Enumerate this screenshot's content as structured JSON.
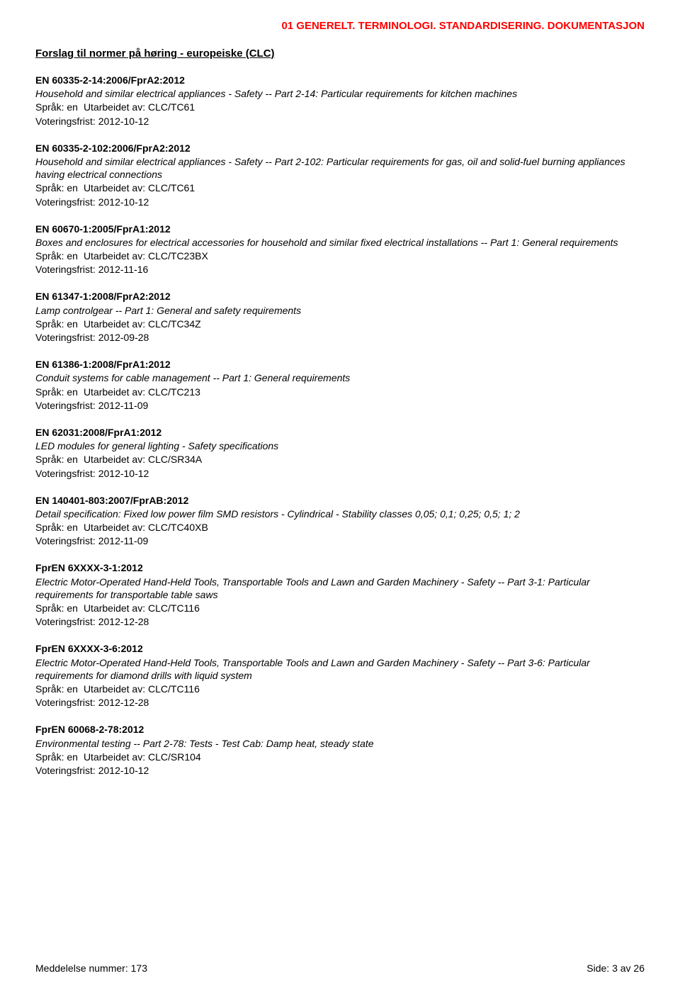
{
  "page_header": "01  GENERELT. TERMINOLOGI. STANDARDISERING. DOKUMENTASJON",
  "section_title": "Forslag til normer på høring - europeiske (CLC)",
  "labels": {
    "sprak": "Språk:",
    "utarbeidet": "Utarbeidet av:",
    "voteringsfrist": "Voteringsfrist:"
  },
  "entries": [
    {
      "code": "EN 60335-2-14:2006/FprA2:2012",
      "desc": "Household and similar electrical appliances - Safety -- Part 2-14: Particular requirements for kitchen machines",
      "sprak": "en",
      "utarbeidet": "CLC/TC61",
      "voteringsfrist": "2012-10-12"
    },
    {
      "code": "EN 60335-2-102:2006/FprA2:2012",
      "desc": "Household and similar electrical appliances - Safety -- Part 2-102: Particular requirements for gas, oil and solid-fuel burning appliances having electrical connections",
      "sprak": "en",
      "utarbeidet": "CLC/TC61",
      "voteringsfrist": "2012-10-12"
    },
    {
      "code": "EN 60670-1:2005/FprA1:2012",
      "desc": "Boxes and enclosures for electrical accessories for household and similar fixed electrical installations -- Part 1: General requirements",
      "sprak": "en",
      "utarbeidet": "CLC/TC23BX",
      "voteringsfrist": "2012-11-16"
    },
    {
      "code": "EN 61347-1:2008/FprA2:2012",
      "desc": "Lamp controlgear -- Part 1: General and safety requirements",
      "sprak": "en",
      "utarbeidet": "CLC/TC34Z",
      "voteringsfrist": "2012-09-28"
    },
    {
      "code": "EN 61386-1:2008/FprA1:2012",
      "desc": "Conduit systems for cable management -- Part 1: General requirements",
      "sprak": "en",
      "utarbeidet": "CLC/TC213",
      "voteringsfrist": "2012-11-09"
    },
    {
      "code": "EN 62031:2008/FprA1:2012",
      "desc": "LED modules for general lighting - Safety specifications",
      "sprak": "en",
      "utarbeidet": "CLC/SR34A",
      "voteringsfrist": "2012-10-12"
    },
    {
      "code": "EN 140401-803:2007/FprAB:2012",
      "desc": "Detail specification: Fixed low power film SMD resistors - Cylindrical - Stability classes 0,05; 0,1; 0,25; 0,5; 1; 2",
      "sprak": "en",
      "utarbeidet": "CLC/TC40XB",
      "voteringsfrist": "2012-11-09"
    },
    {
      "code": "FprEN 6XXXX-3-1:2012",
      "desc": "Electric Motor-Operated Hand-Held Tools, Transportable Tools and Lawn and Garden Machinery - Safety -- Part 3-1: Particular requirements for transportable table saws",
      "sprak": "en",
      "utarbeidet": "CLC/TC116",
      "voteringsfrist": "2012-12-28"
    },
    {
      "code": "FprEN 6XXXX-3-6:2012",
      "desc": "Electric Motor-Operated Hand-Held Tools, Transportable Tools and Lawn and Garden Machinery - Safety -- Part 3-6: Particular requirements for diamond drills with liquid system",
      "sprak": "en",
      "utarbeidet": "CLC/TC116",
      "voteringsfrist": "2012-12-28"
    },
    {
      "code": "FprEN 60068-2-78:2012",
      "desc": "Environmental testing -- Part 2-78: Tests - Test Cab: Damp heat, steady state",
      "sprak": "en",
      "utarbeidet": "CLC/SR104",
      "voteringsfrist": "2012-10-12"
    }
  ],
  "footer": {
    "left_label": "Meddelelse nummer:",
    "left_value": "173",
    "right_label": "Side:",
    "right_value": "3 av 26"
  },
  "colors": {
    "header": "#ff0000",
    "text": "#000000",
    "background": "#ffffff"
  }
}
